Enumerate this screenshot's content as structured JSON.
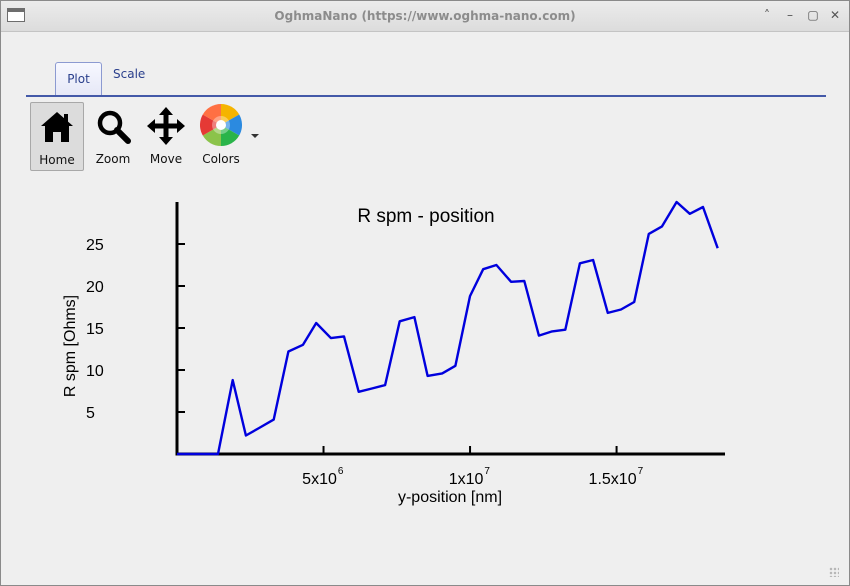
{
  "window": {
    "title": "OghmaNano (https://www.oghma-nano.com)"
  },
  "tabs": [
    {
      "label": "Plot"
    },
    {
      "label": "Scale"
    }
  ],
  "toolbar": {
    "home": "Home",
    "zoom": "Zoom",
    "move": "Move",
    "colors": "Colors"
  },
  "chart_data": {
    "type": "line",
    "title": "R spm - position",
    "xlabel": "y-position [nm]",
    "ylabel": "R spm [Ohms]",
    "xlim": [
      0,
      18700000
    ],
    "ylim": [
      0,
      30
    ],
    "grid": false,
    "xticks": [
      {
        "value": 5000000,
        "label": "5x10",
        "exp": "6"
      },
      {
        "value": 10000000,
        "label": "1x10",
        "exp": "7"
      },
      {
        "value": 15000000,
        "label": "1.5x10",
        "exp": "7"
      }
    ],
    "yticks": [
      5,
      10,
      15,
      20,
      25
    ],
    "color": "#0000dd",
    "series": [
      {
        "x": [
          0,
          1400000,
          1900000,
          2350000,
          2800000,
          3300000,
          3800000,
          4300000,
          4750000,
          5250000,
          5700000,
          6200000,
          6650000,
          7100000,
          7600000,
          8100000,
          8550000,
          9050000,
          9500000,
          10000000,
          10450000,
          10900000,
          11400000,
          11850000,
          12350000,
          12800000,
          13250000,
          13750000,
          14200000,
          14700000,
          15150000,
          15600000,
          16100000,
          16550000,
          17050000,
          17500000,
          17950000,
          18450000
        ],
        "y": [
          0,
          0,
          8.8,
          2.2,
          3.1,
          4.1,
          12.2,
          13.0,
          15.6,
          13.8,
          14.0,
          7.4,
          7.8,
          8.2,
          15.8,
          16.3,
          9.3,
          9.6,
          10.5,
          18.8,
          22.0,
          22.5,
          20.5,
          20.6,
          14.1,
          14.6,
          14.8,
          22.7,
          23.1,
          16.8,
          17.2,
          18.1,
          26.2,
          27.1,
          30.0,
          28.6,
          29.4,
          24.5
        ]
      }
    ]
  }
}
